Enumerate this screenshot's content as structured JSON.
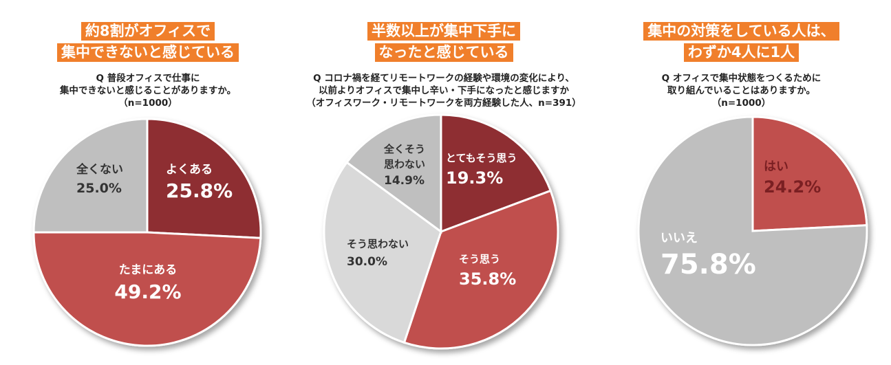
{
  "colors": {
    "dark_red": "#8E2E30",
    "red": "#C0504D",
    "light_gray": "#D9D9D9",
    "gray": "#BFBFBF",
    "headline_bg": "#F07F2B"
  },
  "panels": [
    {
      "headline": [
        "約8割がオフィスで",
        "集中できないと感じている"
      ],
      "question": [
        "Q 普段オフィスで仕事に",
        "集中できないと感じることがありますか。",
        "（n=1000）"
      ]
    },
    {
      "headline": [
        "半数以上が集中下手に",
        "なったと感じている"
      ],
      "question": [
        "Q コロナ禍を経てリモートワークの経験や環境の変化により、",
        "以前よりオフィスで集中し辛い・下手になったと感じますか",
        "（オフィスワーク・リモートワークを両方経験した人、n=391）"
      ]
    },
    {
      "headline": [
        "集中の対策をしている人は、",
        "わずか4人に1人"
      ],
      "question": [
        "Q オフィスで集中状態をつくるために",
        "取り組んでいることはありますか。",
        "（n=1000）"
      ]
    }
  ],
  "chart_data": [
    {
      "type": "pie",
      "title": "約8割がオフィスで集中できないと感じている",
      "categories": [
        "よくある",
        "たまにある",
        "全くない"
      ],
      "values": [
        25.8,
        49.2,
        25.0
      ],
      "value_labels": [
        "25.8%",
        "49.2%",
        "25.0%"
      ],
      "colors": [
        "#8E2E30",
        "#C0504D",
        "#BFBFBF"
      ]
    },
    {
      "type": "pie",
      "title": "半数以上が集中下手になったと感じている",
      "categories": [
        "とてもそう思う",
        "そう思う",
        "そう思わない",
        "全くそう思わない"
      ],
      "values": [
        19.3,
        35.8,
        30.0,
        14.9
      ],
      "value_labels": [
        "19.3%",
        "35.8%",
        "30.0%",
        "14.9%"
      ],
      "colors": [
        "#8E2E30",
        "#C0504D",
        "#D9D9D9",
        "#BFBFBF"
      ]
    },
    {
      "type": "pie",
      "title": "集中の対策をしている人は、わずか4人に1人",
      "categories": [
        "はい",
        "いいえ"
      ],
      "values": [
        24.2,
        75.8
      ],
      "value_labels": [
        "24.2%",
        "75.8%"
      ],
      "colors": [
        "#C0504D",
        "#BFBFBF"
      ]
    }
  ]
}
